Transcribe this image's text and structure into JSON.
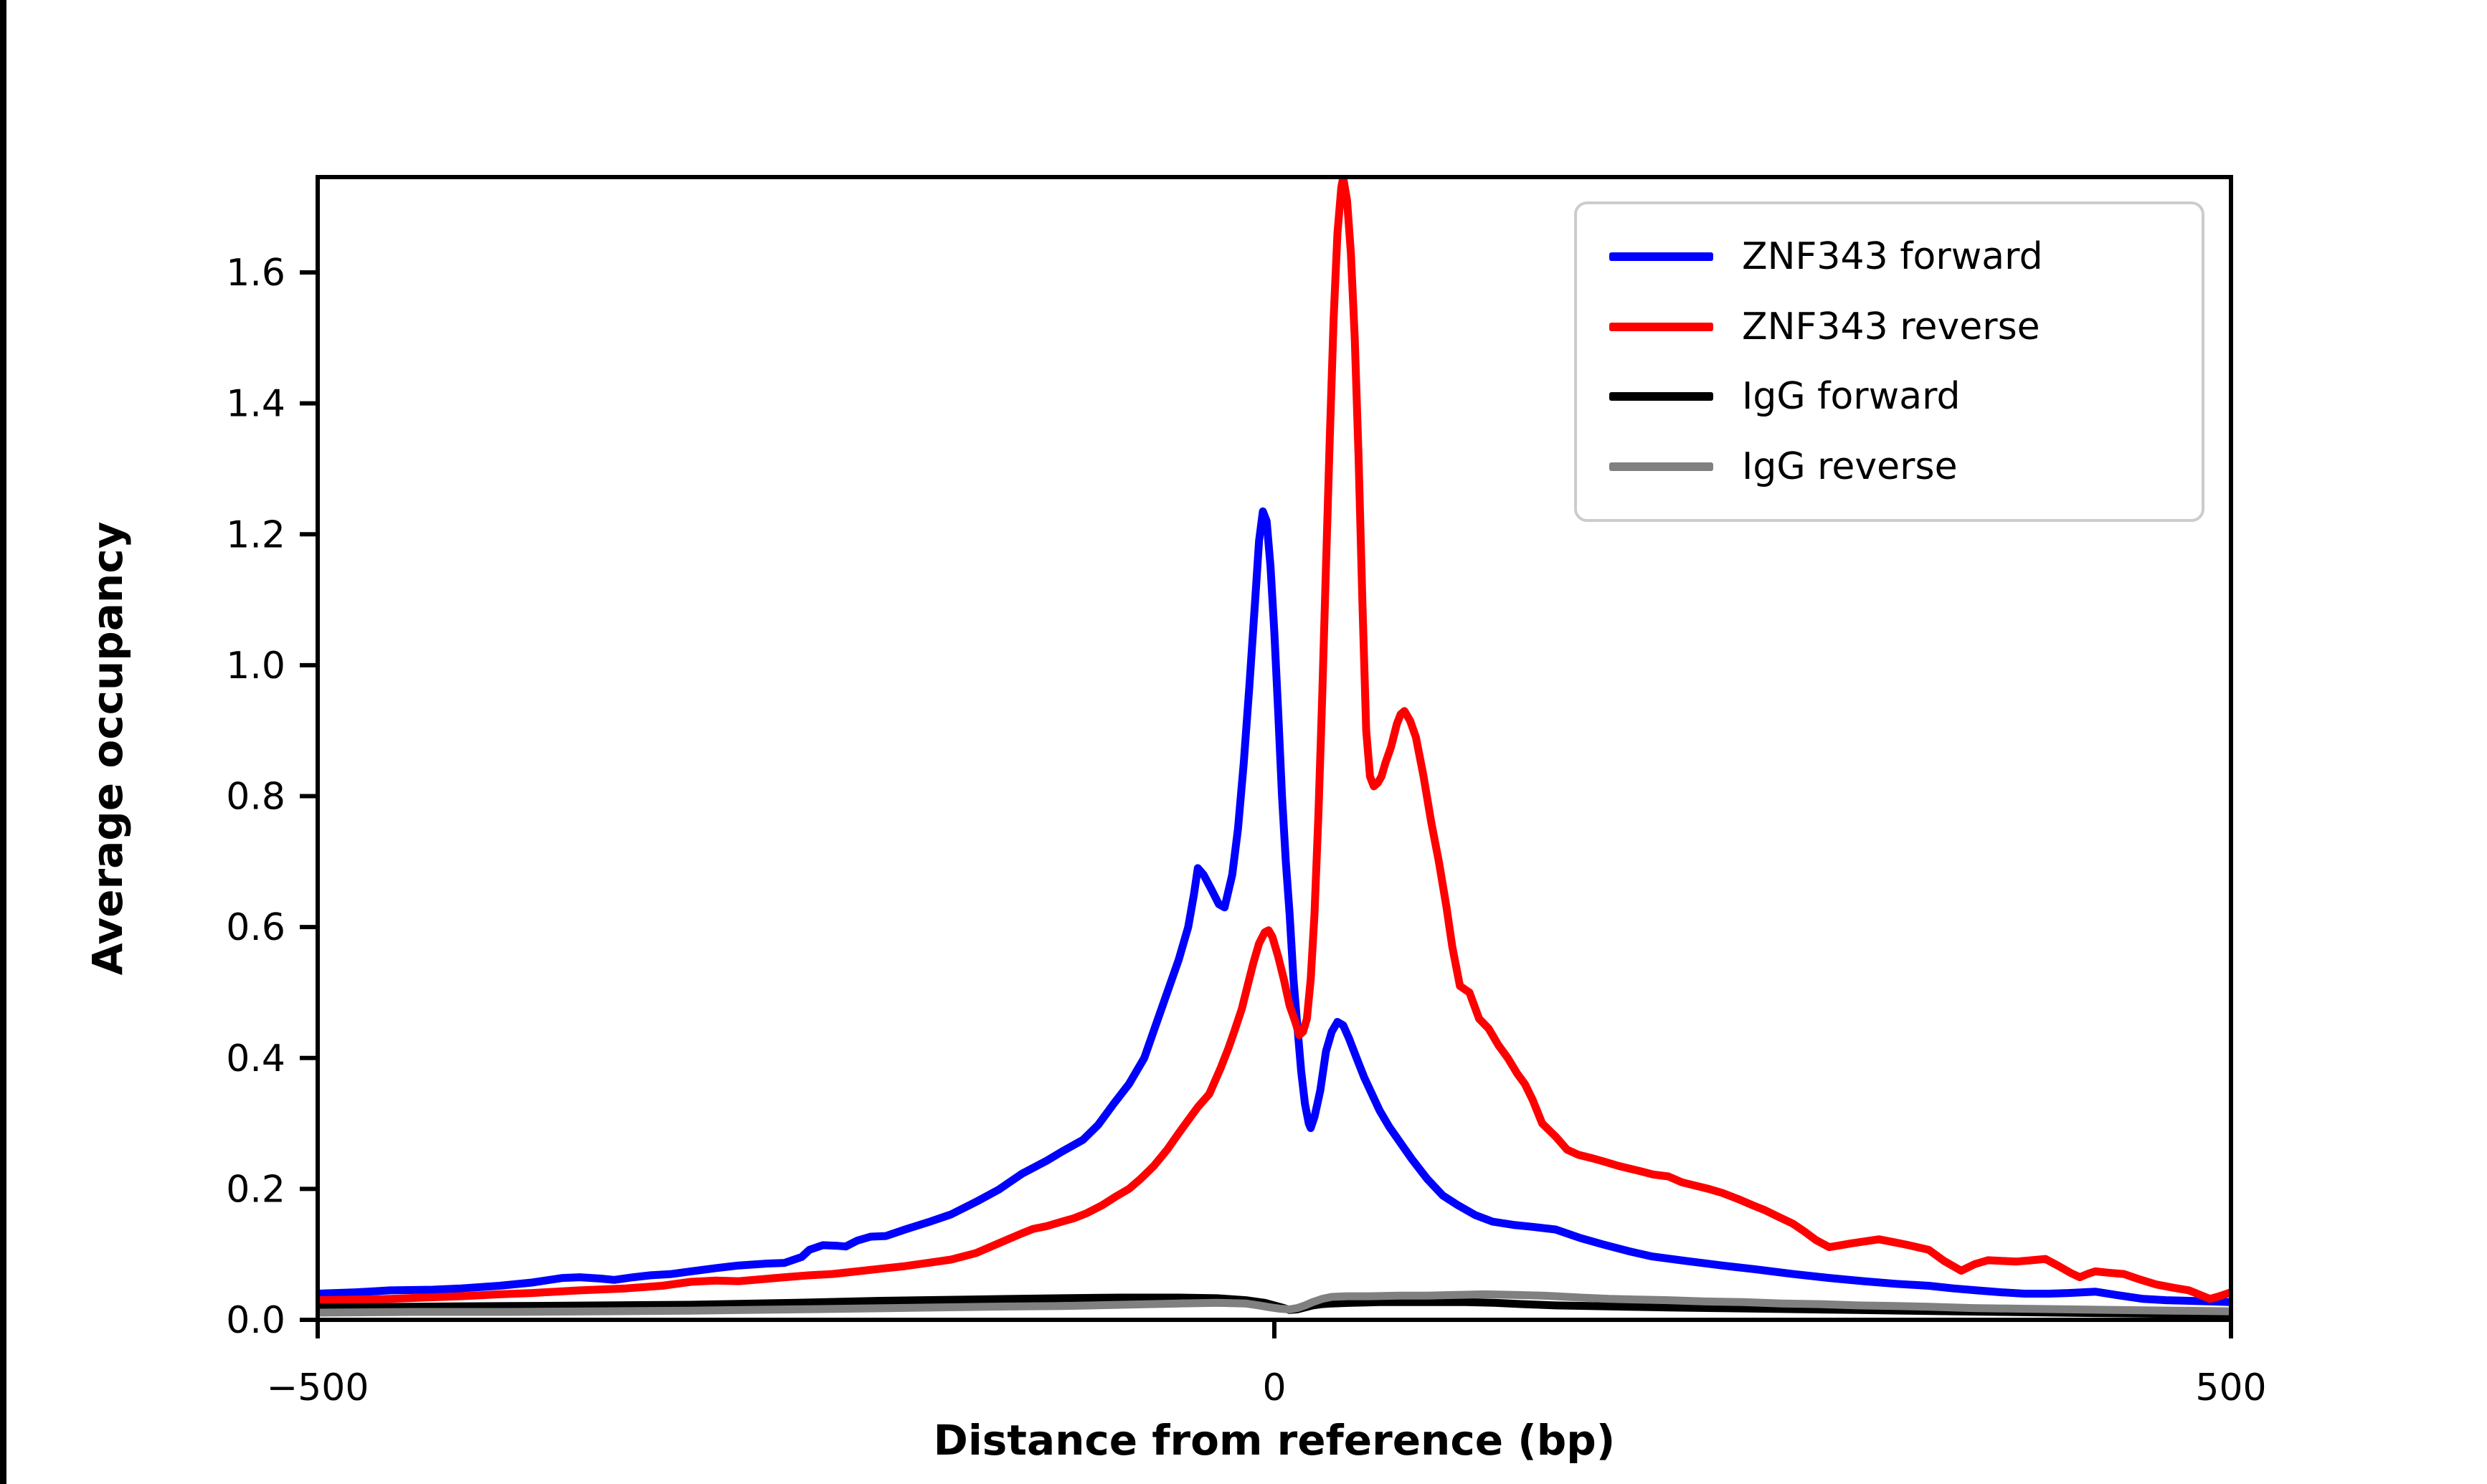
{
  "figure": {
    "background": "#ffffff",
    "left_border_color": "#000000",
    "frame_color": "#000000"
  },
  "chart_data": {
    "type": "line",
    "title": "",
    "xlabel": "Distance from reference (bp)",
    "ylabel": "Average occupancy",
    "xlim": [
      -500,
      500
    ],
    "ylim": [
      0,
      1.746
    ],
    "grid": false,
    "legend_position": "upper right",
    "x_ticks": [
      {
        "value": -500,
        "label": "−500"
      },
      {
        "value": 0,
        "label": "0"
      },
      {
        "value": 500,
        "label": "500"
      }
    ],
    "y_ticks": [
      {
        "value": 0.0,
        "label": "0.0"
      },
      {
        "value": 0.2,
        "label": "0.2"
      },
      {
        "value": 0.4,
        "label": "0.4"
      },
      {
        "value": 0.6,
        "label": "0.6"
      },
      {
        "value": 0.8,
        "label": "0.8"
      },
      {
        "value": 1.0,
        "label": "1.0"
      },
      {
        "value": 1.2,
        "label": "1.2"
      },
      {
        "value": 1.4,
        "label": "1.4"
      },
      {
        "value": 1.6,
        "label": "1.6"
      }
    ],
    "series": [
      {
        "name": "ZNF343 forward",
        "color": "#0000ff",
        "x": [
          -500,
          -480,
          -462,
          -440,
          -425,
          -405,
          -388,
          -372,
          -363,
          -352,
          -345,
          -335,
          -326,
          -315,
          -305,
          -292,
          -280,
          -265,
          -256,
          -247,
          -243,
          -236,
          -228,
          -224,
          -218,
          -211,
          -203,
          -193,
          -181,
          -169,
          -156,
          -144,
          -132,
          -119,
          -111,
          -100,
          -92,
          -84,
          -76,
          -68,
          -62,
          -56,
          -50,
          -45,
          -42,
          -40,
          -37,
          -33,
          -29,
          -26,
          -22,
          -19,
          -16,
          -13,
          -10,
          -8,
          -6,
          -4,
          -2,
          0,
          2,
          4,
          6,
          8,
          10,
          12,
          14,
          16,
          18,
          19,
          21,
          24,
          27,
          30,
          33,
          36,
          39,
          43,
          47,
          51,
          55,
          60,
          66,
          72,
          80,
          88,
          96,
          105,
          114,
          125,
          135,
          147,
          160,
          172,
          185,
          197,
          215,
          234,
          252,
          271,
          290,
          308,
          325,
          342,
          355,
          367,
          380,
          392,
          405,
          415,
          429,
          440,
          454,
          466,
          478,
          490,
          500
        ],
        "y": [
          0.04,
          0.042,
          0.045,
          0.046,
          0.048,
          0.052,
          0.057,
          0.064,
          0.065,
          0.063,
          0.061,
          0.065,
          0.068,
          0.07,
          0.074,
          0.079,
          0.083,
          0.086,
          0.087,
          0.096,
          0.107,
          0.114,
          0.113,
          0.112,
          0.121,
          0.127,
          0.128,
          0.138,
          0.149,
          0.161,
          0.18,
          0.199,
          0.223,
          0.243,
          0.257,
          0.275,
          0.298,
          0.33,
          0.36,
          0.4,
          0.45,
          0.5,
          0.55,
          0.6,
          0.65,
          0.69,
          0.68,
          0.658,
          0.635,
          0.63,
          0.68,
          0.75,
          0.85,
          0.97,
          1.1,
          1.19,
          1.235,
          1.22,
          1.15,
          1.05,
          0.93,
          0.8,
          0.7,
          0.62,
          0.52,
          0.45,
          0.38,
          0.33,
          0.3,
          0.293,
          0.31,
          0.35,
          0.41,
          0.44,
          0.455,
          0.45,
          0.43,
          0.4,
          0.37,
          0.345,
          0.32,
          0.295,
          0.27,
          0.245,
          0.215,
          0.19,
          0.175,
          0.16,
          0.15,
          0.145,
          0.142,
          0.138,
          0.125,
          0.115,
          0.105,
          0.097,
          0.09,
          0.083,
          0.077,
          0.07,
          0.064,
          0.059,
          0.055,
          0.052,
          0.048,
          0.045,
          0.042,
          0.04,
          0.04,
          0.041,
          0.043,
          0.038,
          0.032,
          0.03,
          0.029,
          0.028,
          0.027
        ]
      },
      {
        "name": "ZNF343 reverse",
        "color": "#ff0000",
        "x": [
          -500,
          -480,
          -462,
          -445,
          -425,
          -405,
          -388,
          -363,
          -339,
          -320,
          -305,
          -292,
          -280,
          -268,
          -256,
          -243,
          -231,
          -218,
          -206,
          -193,
          -181,
          -169,
          -156,
          -144,
          -132,
          -126,
          -119,
          -111,
          -105,
          -98,
          -90,
          -83,
          -76,
          -70,
          -63,
          -56,
          -50,
          -45,
          -40,
          -34,
          -28,
          -24,
          -21,
          -17,
          -14,
          -11,
          -8,
          -5,
          -3,
          -1,
          2,
          5,
          8,
          11,
          13,
          15,
          17,
          19,
          21,
          23,
          25,
          27,
          29,
          31,
          33,
          35,
          36,
          38,
          40,
          42,
          44,
          46,
          48,
          50,
          52,
          54,
          56,
          58,
          61,
          64,
          66,
          68,
          71,
          74,
          78,
          82,
          86,
          90,
          93,
          97,
          102,
          107,
          112,
          117,
          122,
          127,
          131,
          135,
          140,
          147,
          153,
          159,
          166,
          172,
          180,
          190,
          198,
          206,
          213,
          220,
          227,
          234,
          242,
          250,
          256,
          263,
          271,
          277,
          283,
          290,
          296,
          302,
          309,
          316,
          323,
          330,
          336,
          342,
          350,
          359,
          366,
          373,
          380,
          388,
          396,
          403,
          410,
          416,
          421,
          425,
          429,
          436,
          444,
          452,
          461,
          470,
          478,
          484,
          489,
          494,
          500
        ],
        "y": [
          0.03,
          0.031,
          0.032,
          0.034,
          0.036,
          0.039,
          0.041,
          0.045,
          0.048,
          0.052,
          0.058,
          0.06,
          0.059,
          0.062,
          0.065,
          0.068,
          0.07,
          0.074,
          0.078,
          0.082,
          0.087,
          0.092,
          0.102,
          0.117,
          0.132,
          0.139,
          0.143,
          0.15,
          0.155,
          0.163,
          0.175,
          0.188,
          0.2,
          0.215,
          0.235,
          0.26,
          0.285,
          0.305,
          0.325,
          0.345,
          0.385,
          0.415,
          0.44,
          0.475,
          0.51,
          0.545,
          0.575,
          0.592,
          0.595,
          0.585,
          0.555,
          0.52,
          0.48,
          0.455,
          0.435,
          0.44,
          0.46,
          0.52,
          0.62,
          0.77,
          0.95,
          1.15,
          1.35,
          1.53,
          1.66,
          1.73,
          1.745,
          1.71,
          1.63,
          1.5,
          1.32,
          1.1,
          0.9,
          0.83,
          0.815,
          0.82,
          0.83,
          0.85,
          0.875,
          0.91,
          0.925,
          0.93,
          0.915,
          0.89,
          0.83,
          0.76,
          0.7,
          0.63,
          0.57,
          0.51,
          0.5,
          0.46,
          0.445,
          0.42,
          0.4,
          0.376,
          0.36,
          0.336,
          0.3,
          0.28,
          0.26,
          0.252,
          0.247,
          0.242,
          0.235,
          0.228,
          0.222,
          0.219,
          0.21,
          0.205,
          0.2,
          0.194,
          0.185,
          0.175,
          0.168,
          0.158,
          0.147,
          0.135,
          0.122,
          0.111,
          0.114,
          0.117,
          0.12,
          0.123,
          0.119,
          0.115,
          0.111,
          0.107,
          0.09,
          0.075,
          0.085,
          0.091,
          0.09,
          0.089,
          0.091,
          0.093,
          0.082,
          0.072,
          0.065,
          0.07,
          0.074,
          0.072,
          0.07,
          0.062,
          0.054,
          0.049,
          0.045,
          0.038,
          0.032,
          0.036,
          0.042
        ]
      },
      {
        "name": "IgG forward",
        "color": "#000000",
        "x": [
          -500,
          -450,
          -400,
          -350,
          -305,
          -250,
          -206,
          -160,
          -111,
          -80,
          -50,
          -30,
          -15,
          -5,
          0,
          5,
          8,
          12,
          16,
          20,
          25,
          30,
          40,
          55,
          70,
          85,
          100,
          115,
          130,
          147,
          165,
          185,
          206,
          230,
          256,
          280,
          305,
          330,
          355,
          380,
          410,
          440,
          470,
          500
        ],
        "y": [
          0.019,
          0.02,
          0.021,
          0.022,
          0.023,
          0.026,
          0.029,
          0.031,
          0.033,
          0.034,
          0.034,
          0.033,
          0.03,
          0.026,
          0.022,
          0.018,
          0.015,
          0.016,
          0.019,
          0.022,
          0.024,
          0.025,
          0.026,
          0.027,
          0.027,
          0.027,
          0.027,
          0.026,
          0.024,
          0.022,
          0.021,
          0.02,
          0.019,
          0.018,
          0.017,
          0.016,
          0.015,
          0.014,
          0.013,
          0.012,
          0.011,
          0.01,
          0.009,
          0.008
        ]
      },
      {
        "name": "IgG reverse",
        "color": "#808080",
        "x": [
          -500,
          -450,
          -400,
          -350,
          -305,
          -250,
          -200,
          -150,
          -111,
          -80,
          -50,
          -30,
          -15,
          -8,
          -2,
          3,
          8,
          12,
          16,
          20,
          25,
          30,
          38,
          50,
          65,
          80,
          95,
          110,
          125,
          140,
          147,
          160,
          175,
          190,
          206,
          225,
          245,
          265,
          285,
          305,
          325,
          342,
          365,
          390,
          415,
          440,
          470,
          500
        ],
        "y": [
          0.011,
          0.012,
          0.012,
          0.013,
          0.014,
          0.016,
          0.018,
          0.02,
          0.021,
          0.023,
          0.025,
          0.026,
          0.025,
          0.022,
          0.019,
          0.017,
          0.016,
          0.018,
          0.022,
          0.027,
          0.032,
          0.035,
          0.036,
          0.036,
          0.037,
          0.037,
          0.038,
          0.039,
          0.038,
          0.037,
          0.036,
          0.034,
          0.032,
          0.031,
          0.03,
          0.028,
          0.027,
          0.025,
          0.024,
          0.022,
          0.021,
          0.02,
          0.018,
          0.017,
          0.016,
          0.015,
          0.014,
          0.013
        ]
      }
    ]
  }
}
